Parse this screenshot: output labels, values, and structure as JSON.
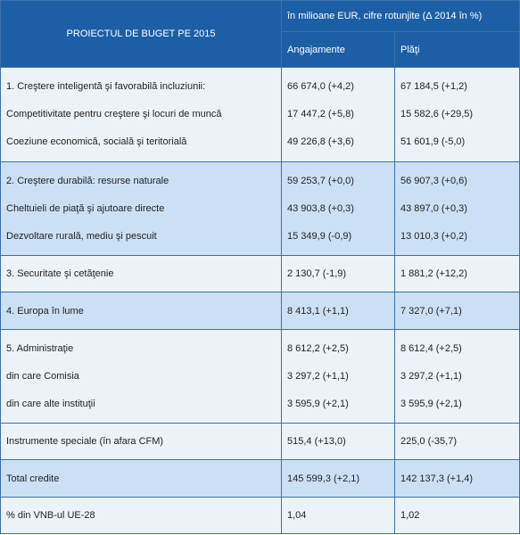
{
  "header": {
    "title": "PROIECTUL DE BUGET PE 2015",
    "unit_note": "în milioane EUR, cifre rotunjite (Δ 2014 în %)",
    "col_commitments": "Angajamente",
    "col_payments": "Plăţi"
  },
  "groups": [
    {
      "shade": "light",
      "rows": [
        {
          "label": "1. Creştere inteligentă şi favorabilă incluziunii:",
          "commitments": "66 674,0 (+4,2)",
          "payments": "67 184,5 (+1,2)"
        },
        {
          "label": "Competitivitate pentru creştere şi locuri de muncă",
          "commitments": "17 447,2 (+5,8)",
          "payments": "15 582,6 (+29,5)"
        },
        {
          "label": "Coeziune economică, socială şi teritorială",
          "commitments": "49 226,8 (+3,6)",
          "payments": "51 601,9 (-5,0)"
        }
      ]
    },
    {
      "shade": "blue",
      "rows": [
        {
          "label": "2. Creştere durabilă: resurse naturale",
          "commitments": "59 253,7 (+0,0)",
          "payments": "56 907,3 (+0,6)"
        },
        {
          "label": "Cheltuieli de piaţă şi ajutoare directe",
          "commitments": "43 903,8 (+0,3)",
          "payments": "43 897,0 (+0,3)"
        },
        {
          "label": "Dezvoltare rurală, mediu şi pescuit",
          "commitments": "15 349,9 (-0,9)",
          "payments": "13 010,3 (+0,2)"
        }
      ]
    },
    {
      "shade": "light",
      "rows": [
        {
          "label": "3. Securitate şi cetăţenie",
          "commitments": "2 130,7 (-1,9)",
          "payments": "1 881,2 (+12,2)"
        }
      ]
    },
    {
      "shade": "blue",
      "rows": [
        {
          "label": "4. Europa în lume",
          "commitments": "8 413,1 (+1,1)",
          "payments": "7 327,0 (+7,1)"
        }
      ]
    },
    {
      "shade": "light",
      "rows": [
        {
          "label": "5. Administraţie",
          "commitments": "8 612,2 (+2,5)",
          "payments": "8 612,4 (+2,5)"
        },
        {
          "label": "din care Comisia",
          "commitments": "3 297,2 (+1,1)",
          "payments": "3 297,2 (+1,1)"
        },
        {
          "label": "din care alte instituţii",
          "commitments": "3 595,9 (+2,1)",
          "payments": "3 595,9 (+2,1)"
        }
      ]
    },
    {
      "shade": "light",
      "rows": [
        {
          "label": "Instrumente speciale (în afara CFM)",
          "commitments": "515,4 (+13,0)",
          "payments": "225,0 (-35,7)"
        }
      ]
    },
    {
      "shade": "blue",
      "rows": [
        {
          "label": "Total credite",
          "commitments": "145 599,3 (+2,1)",
          "payments": "142 137,3 (+1,4)"
        }
      ]
    },
    {
      "shade": "light",
      "rows": [
        {
          "label": "% din VNB-ul UE-28",
          "commitments": "1,04",
          "payments": "1,02"
        }
      ]
    }
  ],
  "colors": {
    "header_bg": "#1d5fa6",
    "light_bg": "#ecf3f8",
    "blue_bg": "#cce0f5",
    "border": "#3d6fa8"
  }
}
